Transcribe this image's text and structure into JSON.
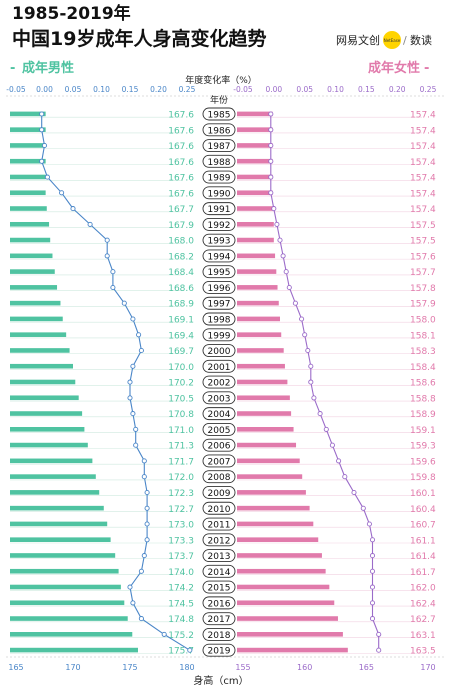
{
  "header": {
    "title_line1": "1985-2019年",
    "title_line2": "中国19岁成年人身高变化趋势",
    "brand_name": "网易文创",
    "brand_logo_text": "NetEase",
    "brand_separator": "/",
    "brand_sub": "数读"
  },
  "chart_data": {
    "type": "bar",
    "title": "1985-2019年 中国19岁成年人身高变化趋势",
    "categories": [
      "1985",
      "1986",
      "1987",
      "1988",
      "1989",
      "1990",
      "1991",
      "1992",
      "1993",
      "1994",
      "1995",
      "1996",
      "1997",
      "1998",
      "1999",
      "2000",
      "2001",
      "2002",
      "2003",
      "2004",
      "2005",
      "2006",
      "2007",
      "2008",
      "2009",
      "2010",
      "2011",
      "2012",
      "2013",
      "2014",
      "2015",
      "2016",
      "2017",
      "2018",
      "2019"
    ],
    "category_axis_label": "年份",
    "top_axis_label": "年度变化率（%）",
    "bottom_axis_label": "身高（cm）",
    "colors": {
      "male": "#4fc3a1",
      "female": "#e17aab",
      "male_line": "#4a86c8",
      "female_line": "#9b6bc9"
    },
    "male": {
      "name": "成年男性",
      "height_values": [
        167.6,
        167.6,
        167.6,
        167.6,
        167.6,
        167.6,
        167.7,
        167.9,
        168.0,
        168.2,
        168.4,
        168.6,
        168.9,
        169.1,
        169.4,
        169.7,
        170.0,
        170.2,
        170.5,
        170.8,
        171.0,
        171.3,
        171.7,
        172.0,
        172.3,
        172.7,
        173.0,
        173.3,
        173.7,
        174.0,
        174.2,
        174.5,
        174.8,
        175.2,
        175.7
      ],
      "height_labels": [
        "167.6",
        "167.6",
        "167.6",
        "167.6",
        "167.6",
        "167.6",
        "167.7",
        "167.9",
        "168.0",
        "168.2",
        "168.4",
        "168.6",
        "168.9",
        "169.1",
        "169.4",
        "169.7",
        "170.0",
        "170.2",
        "170.5",
        "170.8",
        "171.0",
        "171.3",
        "171.7",
        "172.0",
        "172.3",
        "172.7",
        "173.0",
        "173.3",
        "173.7",
        "174.0",
        "174.2",
        "174.5",
        "174.8",
        "175.2",
        "175.7"
      ],
      "height_ticks": [
        "165",
        "170",
        "175",
        "180"
      ],
      "height_range": [
        165,
        180
      ],
      "rate_values": [
        -0.005,
        -0.005,
        0.0,
        -0.005,
        0.005,
        0.03,
        0.05,
        0.08,
        0.11,
        0.11,
        0.12,
        0.12,
        0.14,
        0.155,
        0.165,
        0.17,
        0.155,
        0.15,
        0.15,
        0.155,
        0.16,
        0.16,
        0.175,
        0.175,
        0.18,
        0.18,
        0.18,
        0.18,
        0.175,
        0.17,
        0.15,
        0.155,
        0.17,
        0.21,
        0.255
      ],
      "rate_ticks": [
        "-0.05",
        "0.00",
        "0.05",
        "0.10",
        "0.15",
        "0.20",
        "0.25"
      ],
      "rate_range": [
        -0.05,
        0.25
      ]
    },
    "female": {
      "name": "成年女性",
      "height_values": [
        157.4,
        157.4,
        157.4,
        157.4,
        157.4,
        157.4,
        157.4,
        157.5,
        157.5,
        157.6,
        157.7,
        157.8,
        157.9,
        158.0,
        158.1,
        158.3,
        158.4,
        158.6,
        158.8,
        158.9,
        159.1,
        159.3,
        159.6,
        159.8,
        160.1,
        160.4,
        160.7,
        161.1,
        161.4,
        161.7,
        162.0,
        162.4,
        162.7,
        163.1,
        163.5
      ],
      "height_labels": [
        "157.4",
        "157.4",
        "157.4",
        "157.4",
        "157.4",
        "157.4",
        "157.4",
        "157.5",
        "157.5",
        "157.6",
        "157.7",
        "157.8",
        "157.9",
        "158.0",
        "158.1",
        "158.3",
        "158.4",
        "158.6",
        "158.8",
        "158.9",
        "159.1",
        "159.3",
        "159.6",
        "159.8",
        "160.1",
        "160.4",
        "160.7",
        "161.1",
        "161.4",
        "161.7",
        "162.0",
        "162.4",
        "162.7",
        "163.1",
        "163.5"
      ],
      "height_ticks": [
        "155",
        "160",
        "165",
        "170"
      ],
      "height_range": [
        155,
        170
      ],
      "rate_values": [
        -0.005,
        -0.005,
        -0.005,
        -0.005,
        -0.005,
        -0.005,
        0.0,
        0.005,
        0.01,
        0.015,
        0.02,
        0.025,
        0.035,
        0.045,
        0.05,
        0.055,
        0.06,
        0.06,
        0.065,
        0.075,
        0.085,
        0.095,
        0.105,
        0.115,
        0.13,
        0.145,
        0.155,
        0.16,
        0.16,
        0.16,
        0.16,
        0.16,
        0.16,
        0.17,
        0.17
      ],
      "rate_ticks": [
        "-0.05",
        "0.00",
        "0.05",
        "0.10",
        "0.15",
        "0.20",
        "0.25"
      ],
      "rate_range": [
        -0.05,
        0.25
      ]
    }
  }
}
